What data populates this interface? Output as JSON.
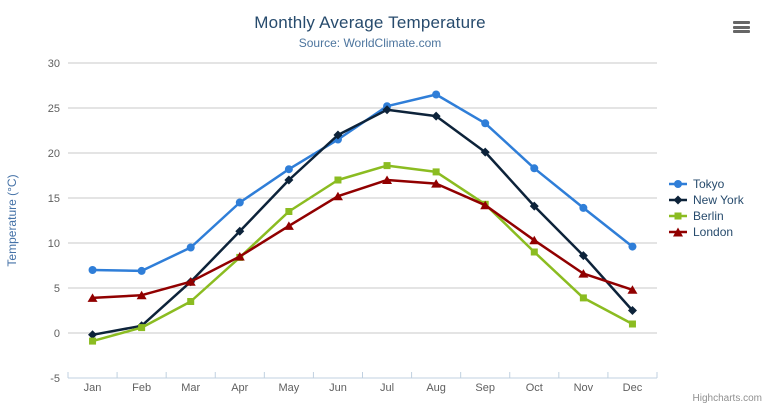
{
  "header": {
    "title": "Monthly Average Temperature",
    "subtitle": "Source: WorldClimate.com"
  },
  "credits": {
    "label": "Highcharts.com"
  },
  "export_menu": {
    "icon": "hamburger-icon"
  },
  "colors": {
    "title": "#274b6d",
    "subtitle": "#4d759e",
    "axis_label": "#606060",
    "axis_title": "#4572a7",
    "grid_line": "#c9c9c9",
    "axis_line": "#c0d0e0",
    "legend_text": "#274b6d",
    "credit": "#909090"
  },
  "chart_data": {
    "type": "line",
    "title": "Monthly Average Temperature",
    "subtitle": "Source: WorldClimate.com",
    "xlabel": "",
    "ylabel": "Temperature (°C)",
    "ylim": [
      -5,
      30
    ],
    "ytick_interval": 5,
    "grid": true,
    "legend_position": "right",
    "categories": [
      "Jan",
      "Feb",
      "Mar",
      "Apr",
      "May",
      "Jun",
      "Jul",
      "Aug",
      "Sep",
      "Oct",
      "Nov",
      "Dec"
    ],
    "series": [
      {
        "name": "Tokyo",
        "color": "#2f7ed8",
        "marker": "circle",
        "values": [
          7.0,
          6.9,
          9.5,
          14.5,
          18.2,
          21.5,
          25.2,
          26.5,
          23.3,
          18.3,
          13.9,
          9.6
        ]
      },
      {
        "name": "New York",
        "color": "#0d233a",
        "marker": "diamond",
        "values": [
          -0.2,
          0.8,
          5.7,
          11.3,
          17.0,
          22.0,
          24.8,
          24.1,
          20.1,
          14.1,
          8.6,
          2.5
        ]
      },
      {
        "name": "Berlin",
        "color": "#8bbc21",
        "marker": "square",
        "values": [
          -0.9,
          0.6,
          3.5,
          8.4,
          13.5,
          17.0,
          18.6,
          17.9,
          14.3,
          9.0,
          3.9,
          1.0
        ]
      },
      {
        "name": "London",
        "color": "#910000",
        "marker": "triangle",
        "values": [
          3.9,
          4.2,
          5.7,
          8.5,
          11.9,
          15.2,
          17.0,
          16.6,
          14.2,
          10.3,
          6.6,
          4.8
        ]
      }
    ]
  }
}
